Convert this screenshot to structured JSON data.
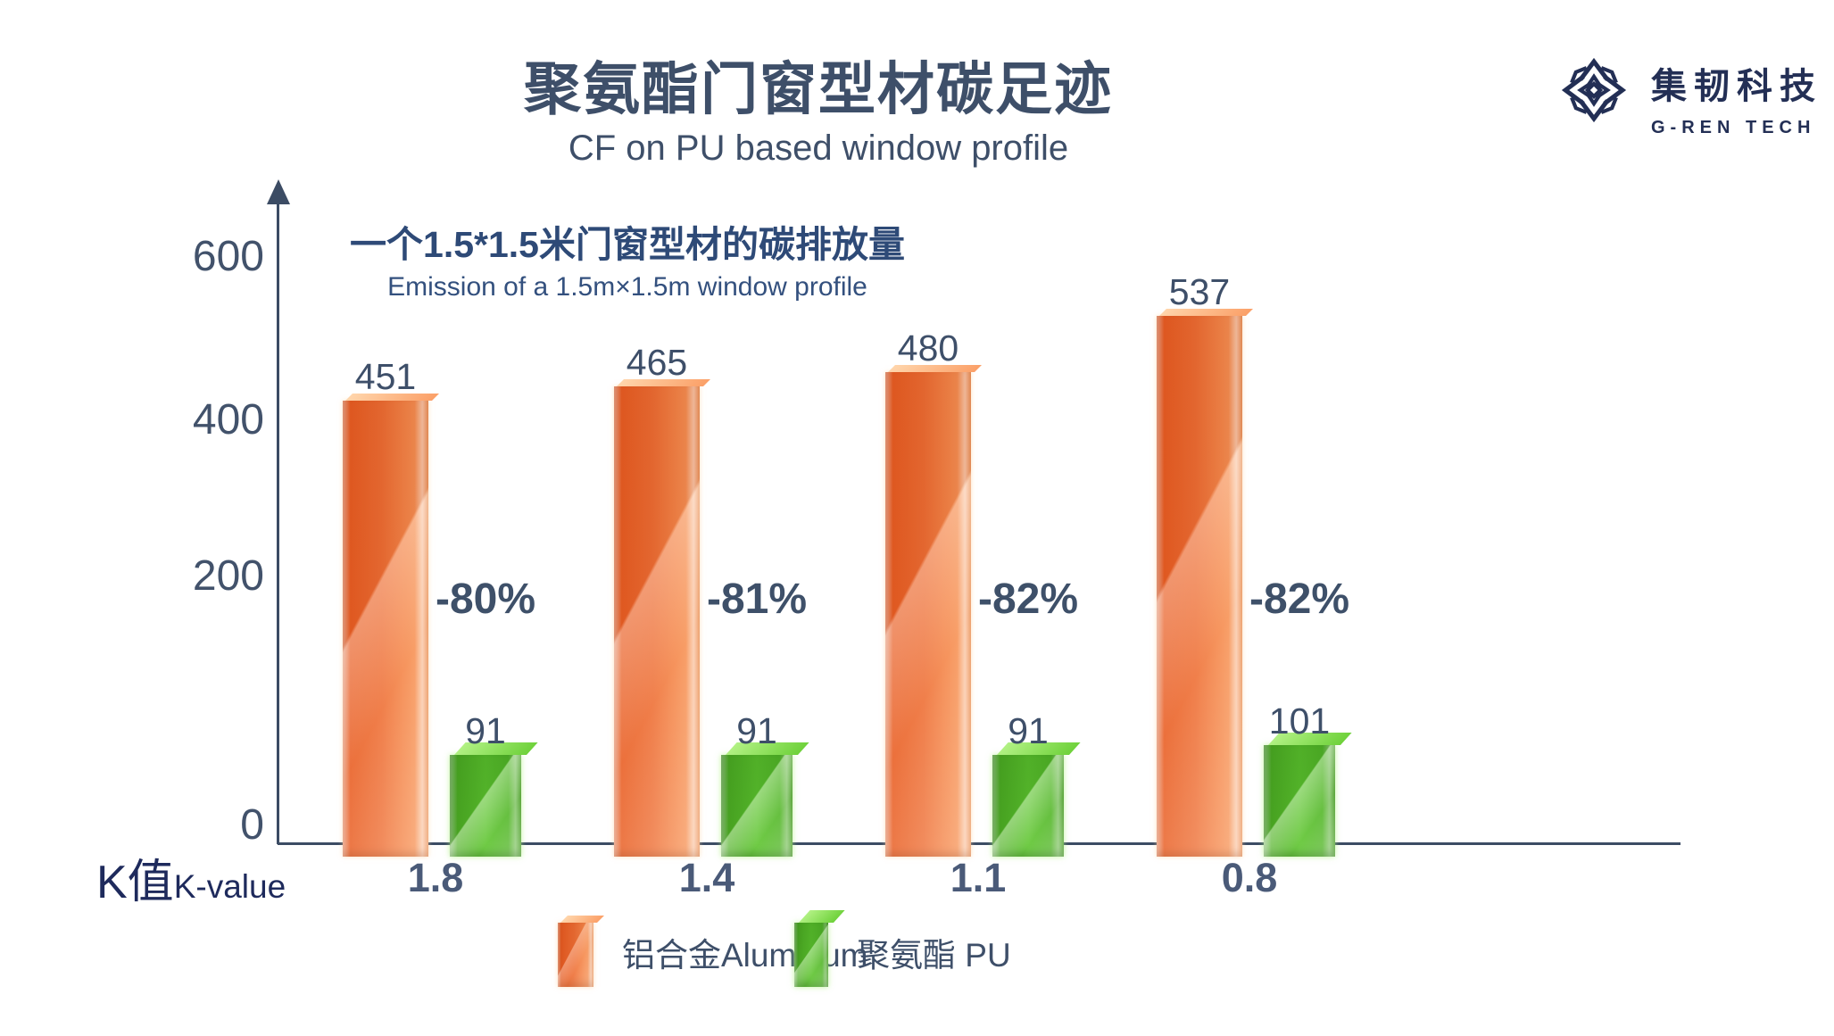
{
  "header": {
    "title": "聚氨酯门窗型材碳足迹",
    "subtitle": "CF on PU based window profile"
  },
  "logo": {
    "icon": "starburst-snowflake-icon",
    "name_cn": "集韧科技",
    "name_en": "G-REN TECH",
    "color": "#232f55"
  },
  "annotation": {
    "line1_cn": "一个1.5*1.5米门窗型材的碳排放量",
    "line2_en": "Emission of a 1.5m×1.5m window profile"
  },
  "axis_title": {
    "cn": "K值",
    "en": "K-value"
  },
  "chart_data": {
    "type": "bar",
    "title": "聚氨酯门窗型材碳足迹",
    "subtitle": "CF on PU based window profile",
    "categories": [
      "1.8",
      "1.4",
      "1.1",
      "0.8"
    ],
    "x_axis_title": "K值 K-value",
    "y_ticks": [
      "600",
      "400",
      "200",
      "0"
    ],
    "ylim": [
      0,
      660
    ],
    "grid": false,
    "legend_position": "bottom",
    "series": [
      {
        "name": "铝合金Aluminum",
        "color": "#ee6a31",
        "values": [
          451,
          465,
          480,
          537
        ]
      },
      {
        "name": "聚氨酯 PU",
        "color": "#5cbe31",
        "values": [
          91,
          91,
          91,
          101
        ]
      }
    ],
    "reduction_labels": [
      "-80%",
      "-81%",
      "-82%",
      "-82%"
    ]
  },
  "legend": {
    "items": [
      {
        "label": "铝合金Aluminum",
        "swatch": "orange-cube"
      },
      {
        "label": "聚氨酯 PU",
        "swatch": "green-cube"
      }
    ]
  }
}
